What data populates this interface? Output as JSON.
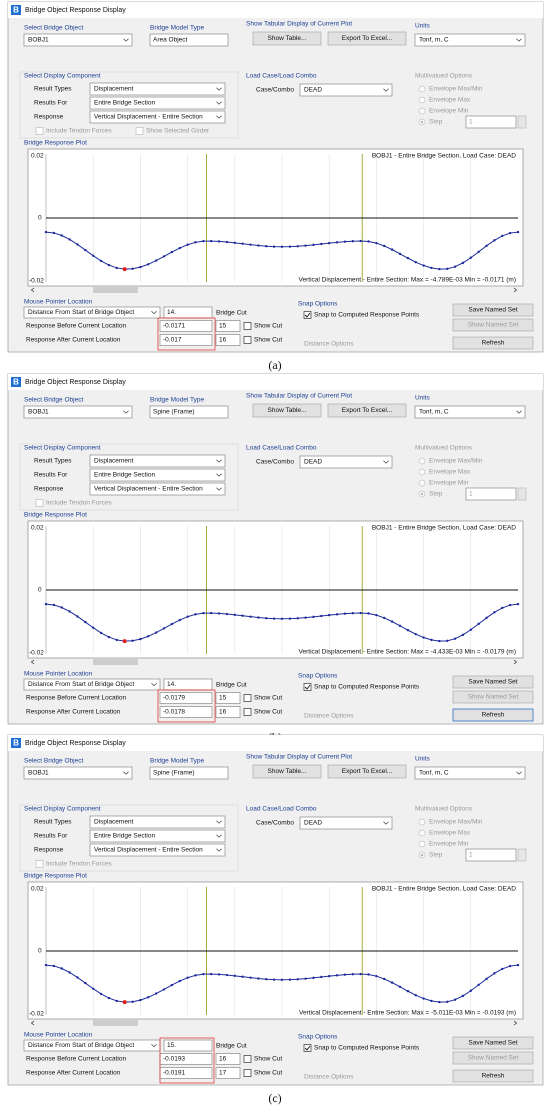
{
  "panels": [
    {
      "caption": "(a)",
      "icon": "B",
      "window_title": "Bridge Object Response Display",
      "select_bridge_object": {
        "label": "Select Bridge Object",
        "value": "BOBJ1"
      },
      "bridge_model_type": {
        "label": "Bridge Model Type",
        "value": "Area Object"
      },
      "tabular": {
        "label": "Show Tabular Display of Current Plot",
        "show_table": "Show Table...",
        "export": "Export To Excel..."
      },
      "units": {
        "label": "Units",
        "value": "Tonf, m, C"
      },
      "display_component": {
        "label": "Select Display Component",
        "rows": [
          [
            "Result Types",
            "Displacement"
          ],
          [
            "Results For",
            "Entire Bridge Section"
          ],
          [
            "Response",
            "Vertical Displacement - Entire Section"
          ]
        ],
        "checkboxes": [
          "Include Tendon Forces",
          "Show Selected Girder"
        ]
      },
      "load_case": {
        "label": "Load Case/Load Combo",
        "field": "Case/Combo",
        "value": "DEAD"
      },
      "multivalued": {
        "label": "Multivalued Options",
        "options": [
          "Envelope Max/Min",
          "Envelope Max",
          "Envelope Min",
          "Step"
        ],
        "step": "1"
      },
      "plot": {
        "label": "Bridge Response Plot",
        "y_top": "0.02",
        "y_zero": "0",
        "y_bottom": "-0.02",
        "header": "BOBJ1 - Entire Bridge Section,  Load Case: DEAD",
        "footer": "Vertical Displacement - Entire Section:  Max = -4.789E-03   Min = -0.0171  (m)"
      },
      "mouse": {
        "label": "Mouse Pointer Location",
        "measure": "Distance From Start of Bridge Object",
        "distance": "14.",
        "bridge_cut": "Bridge Cut",
        "before_label": "Response Before Current Location",
        "before": "-0.0171",
        "before_cut": "15",
        "after_label": "Response After Current Location",
        "after": "-0.017",
        "after_cut": "16",
        "show_cut": "Show Cut"
      },
      "snap": {
        "label": "Snap Options",
        "option": "Snap to Computed Response Points",
        "distance_options": "Distance Options"
      },
      "buttons": [
        "Save Named Set",
        "Show Named Set",
        "Refresh"
      ]
    },
    {
      "caption": "(b)",
      "icon": "B",
      "window_title": "Bridge Object Response Display",
      "select_bridge_object": {
        "label": "Select Bridge Object",
        "value": "BOBJ1"
      },
      "bridge_model_type": {
        "label": "Bridge Model Type",
        "value": "Spine (Frame)"
      },
      "tabular": {
        "label": "Show Tabular Display of Current Plot",
        "show_table": "Show Table...",
        "export": "Export To Excel..."
      },
      "units": {
        "label": "Units",
        "value": "Tonf, m, C"
      },
      "display_component": {
        "label": "Select Display Component",
        "rows": [
          [
            "Result Types",
            "Displacement"
          ],
          [
            "Results For",
            "Entire Bridge Section"
          ],
          [
            "Response",
            "Vertical Displacement - Entire Section"
          ]
        ],
        "checkboxes": [
          "Include Tendon Forces"
        ]
      },
      "load_case": {
        "label": "Load Case/Load Combo",
        "field": "Case/Combo",
        "value": "DEAD"
      },
      "multivalued": {
        "label": "Multivalued Options",
        "options": [
          "Envelope Max/Min",
          "Envelope Max",
          "Envelope Min",
          "Step"
        ],
        "step": "1"
      },
      "plot": {
        "label": "Bridge Response Plot",
        "y_top": "0.02",
        "y_zero": "0",
        "y_bottom": "-0.02",
        "header": "BOBJ1 - Entire Bridge Section,  Load Case: DEAD",
        "footer": "Vertical Displacement - Entire Section:  Max = -4.433E-03   Min = -0.0179  (m)"
      },
      "mouse": {
        "label": "Mouse Pointer Location",
        "measure": "Distance From Start of Bridge Object",
        "distance": "14.",
        "bridge_cut": "Bridge Cut",
        "before_label": "Response Before Current Location",
        "before": "-0.0179",
        "before_cut": "15",
        "after_label": "Response After Current Location",
        "after": "-0.0178",
        "after_cut": "16",
        "show_cut": "Show Cut"
      },
      "snap": {
        "label": "Snap Options",
        "option": "Snap to Computed Response Points",
        "distance_options": "Distance Options"
      },
      "buttons": [
        "Save Named Set",
        "Show Named Set",
        "Refresh"
      ]
    },
    {
      "caption": "(c)",
      "icon": "B",
      "window_title": "Bridge Object Response Display",
      "select_bridge_object": {
        "label": "Select Bridge Object",
        "value": "BOBJ1"
      },
      "bridge_model_type": {
        "label": "Bridge Model Type",
        "value": "Spine (Frame)"
      },
      "tabular": {
        "label": "Show Tabular Display of Current Plot",
        "show_table": "Show Table...",
        "export": "Export To Excel..."
      },
      "units": {
        "label": "Units",
        "value": "Tonf, m, C"
      },
      "display_component": {
        "label": "Select Display Component",
        "rows": [
          [
            "Result Types",
            "Displacement"
          ],
          [
            "Results For",
            "Entire Bridge Section"
          ],
          [
            "Response",
            "Vertical Displacement - Entire Section"
          ]
        ],
        "checkboxes": [
          "Include Tendon Forces"
        ]
      },
      "load_case": {
        "label": "Load Case/Load Combo",
        "field": "Case/Combo",
        "value": "DEAD"
      },
      "multivalued": {
        "label": "Multivalued Options",
        "options": [
          "Envelope Max/Min",
          "Envelope Max",
          "Envelope Min",
          "Step"
        ],
        "step": "1"
      },
      "plot": {
        "label": "Bridge Response Plot",
        "y_top": "0.02",
        "y_zero": "0",
        "y_bottom": "-0.02",
        "header": "BOBJ1 - Entire Bridge Section,  Load Case: DEAD",
        "footer": "Vertical Displacement - Entire Section:  Max = -5.011E-03   Min = -0.0193  (m)"
      },
      "mouse": {
        "label": "Mouse Pointer Location",
        "measure": "Distance From Start of Bridge Object",
        "distance": "15.",
        "bridge_cut": "Bridge Cut",
        "before_label": "Response Before Current Location",
        "before": "-0.0193",
        "before_cut": "16",
        "after_label": "Response After Current Location",
        "after": "-0.0191",
        "after_cut": "17",
        "show_cut": "Show Cut"
      },
      "snap": {
        "label": "Snap Options",
        "option": "Snap to Computed Response Points",
        "distance_options": "Distance Options"
      },
      "buttons": [
        "Save Named Set",
        "Show Named Set",
        "Refresh"
      ]
    }
  ]
}
